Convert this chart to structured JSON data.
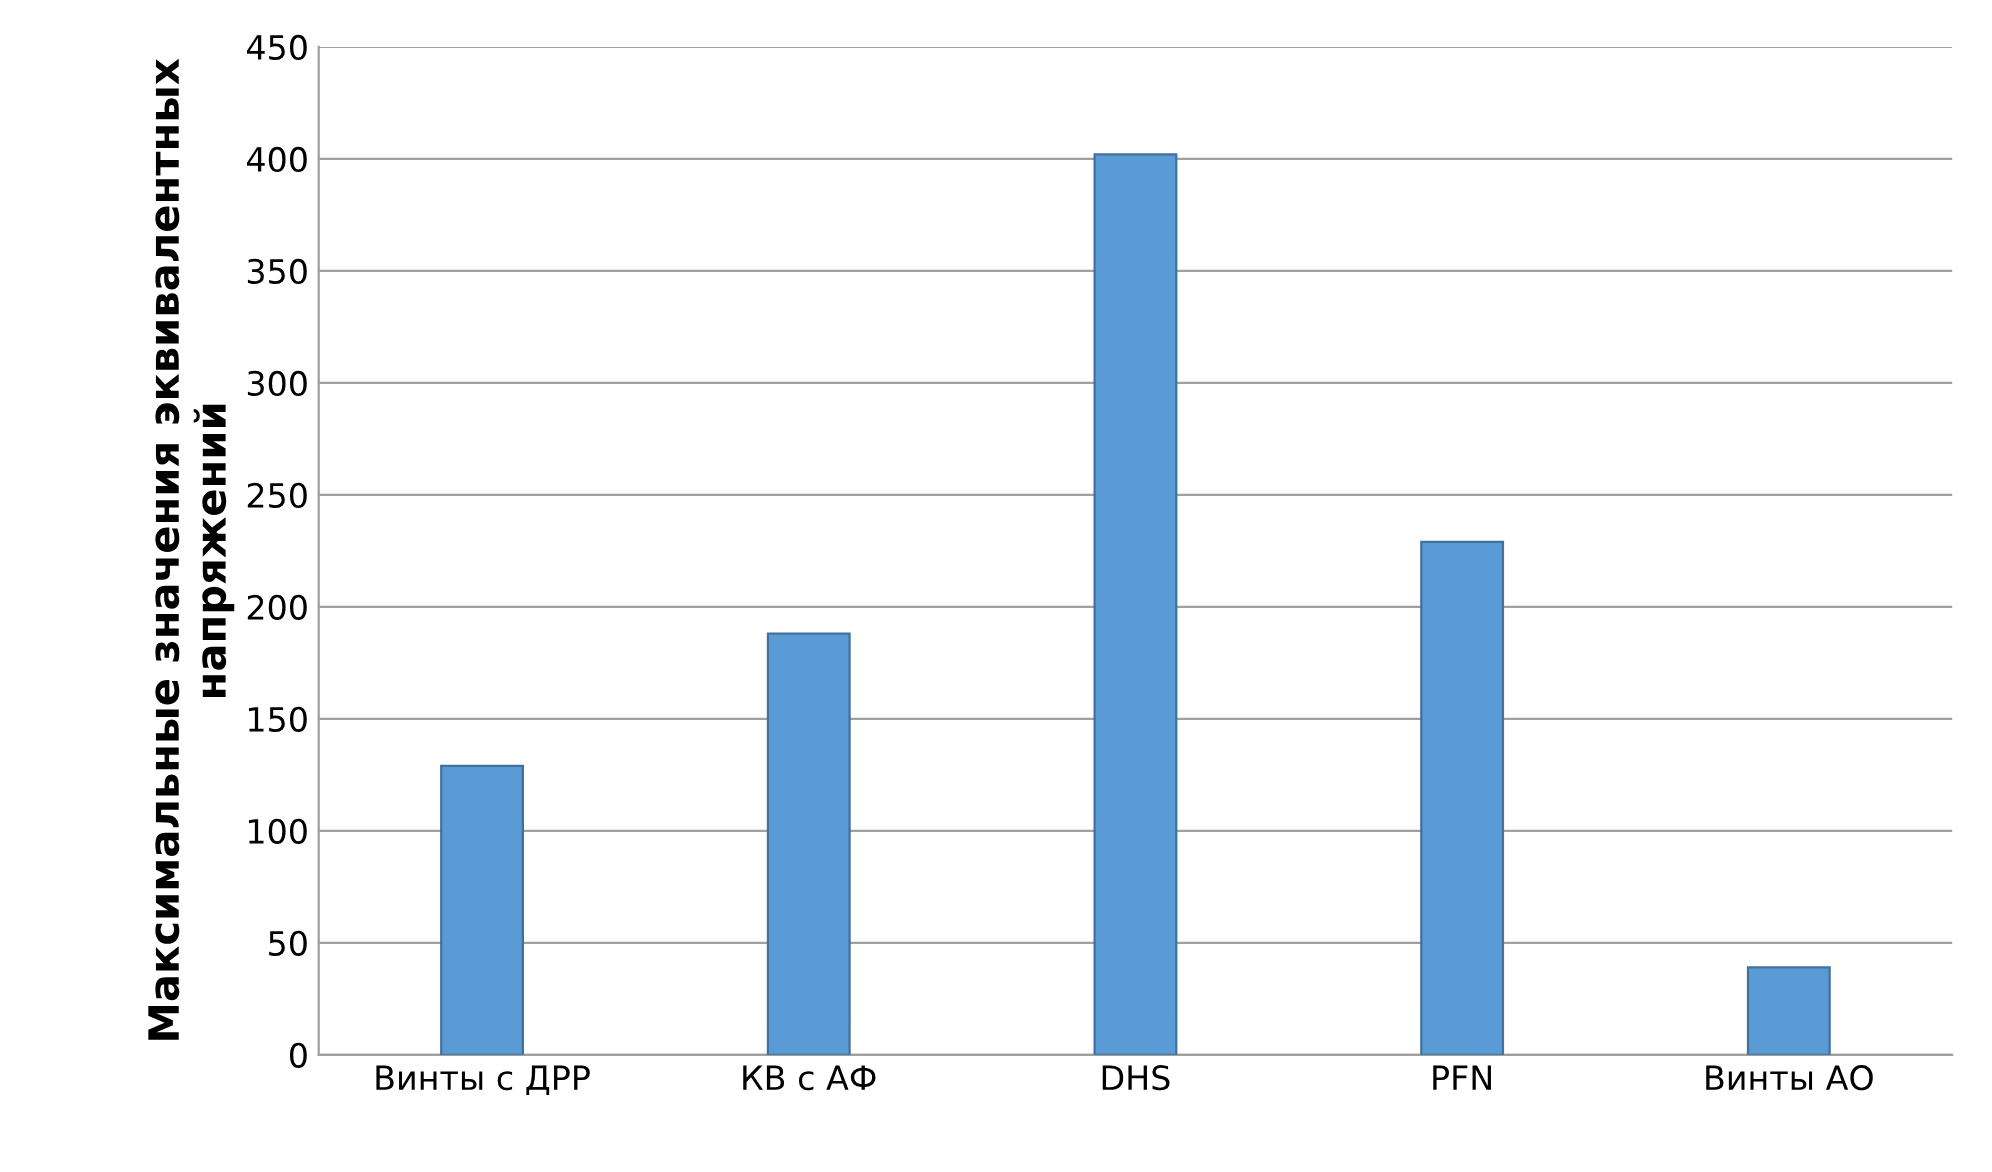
{
  "chart_data": {
    "type": "bar",
    "ylabel": "Максимальные значения эквивалентных\nнапряжений",
    "categories": [
      "Винты с ДРР",
      "КВ с АФ",
      "DHS",
      "PFN",
      "Винты АО"
    ],
    "values": [
      129,
      188,
      402,
      229,
      39
    ],
    "color": "#5b9bd5",
    "ylim": [
      0,
      450
    ],
    "yticks": [
      0,
      50,
      100,
      150,
      200,
      250,
      300,
      350,
      400,
      450
    ],
    "grid": "y"
  }
}
